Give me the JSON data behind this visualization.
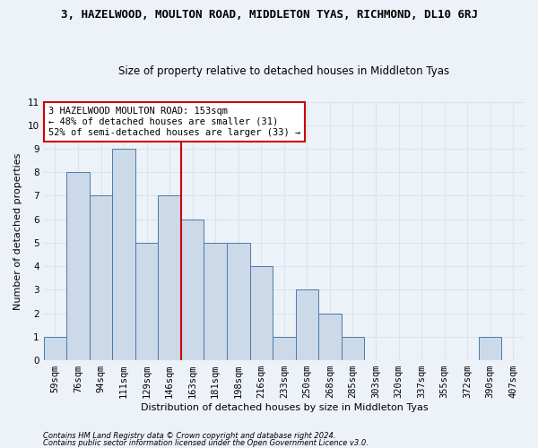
{
  "title": "3, HAZELWOOD, MOULTON ROAD, MIDDLETON TYAS, RICHMOND, DL10 6RJ",
  "subtitle": "Size of property relative to detached houses in Middleton Tyas",
  "xlabel": "Distribution of detached houses by size in Middleton Tyas",
  "ylabel": "Number of detached properties",
  "categories": [
    "59sqm",
    "76sqm",
    "94sqm",
    "111sqm",
    "129sqm",
    "146sqm",
    "163sqm",
    "181sqm",
    "198sqm",
    "216sqm",
    "233sqm",
    "250sqm",
    "268sqm",
    "285sqm",
    "303sqm",
    "320sqm",
    "337sqm",
    "355sqm",
    "372sqm",
    "390sqm",
    "407sqm"
  ],
  "values": [
    1,
    8,
    7,
    9,
    5,
    7,
    6,
    5,
    5,
    4,
    1,
    3,
    2,
    1,
    0,
    0,
    0,
    0,
    0,
    1,
    0
  ],
  "bar_color": "#ccd9e8",
  "bar_edge_color": "#4a7aaa",
  "highlight_line_index": 6,
  "ylim": [
    0,
    11
  ],
  "yticks": [
    0,
    1,
    2,
    3,
    4,
    5,
    6,
    7,
    8,
    9,
    10,
    11
  ],
  "annotation_text_line1": "3 HAZELWOOD MOULTON ROAD: 153sqm",
  "annotation_text_line2": "← 48% of detached houses are smaller (31)",
  "annotation_text_line3": "52% of semi-detached houses are larger (33) →",
  "annotation_box_facecolor": "#ffffff",
  "annotation_box_edgecolor": "#cc0000",
  "red_line_color": "#cc0000",
  "footer_line1": "Contains HM Land Registry data © Crown copyright and database right 2024.",
  "footer_line2": "Contains public sector information licensed under the Open Government Licence v3.0.",
  "background_color": "#edf2f8",
  "grid_color": "#d8e4f0",
  "title_fontsize": 9,
  "subtitle_fontsize": 8.5,
  "ylabel_fontsize": 8,
  "xlabel_fontsize": 8,
  "tick_fontsize": 7.5,
  "annotation_fontsize": 7.5,
  "footer_fontsize": 6
}
